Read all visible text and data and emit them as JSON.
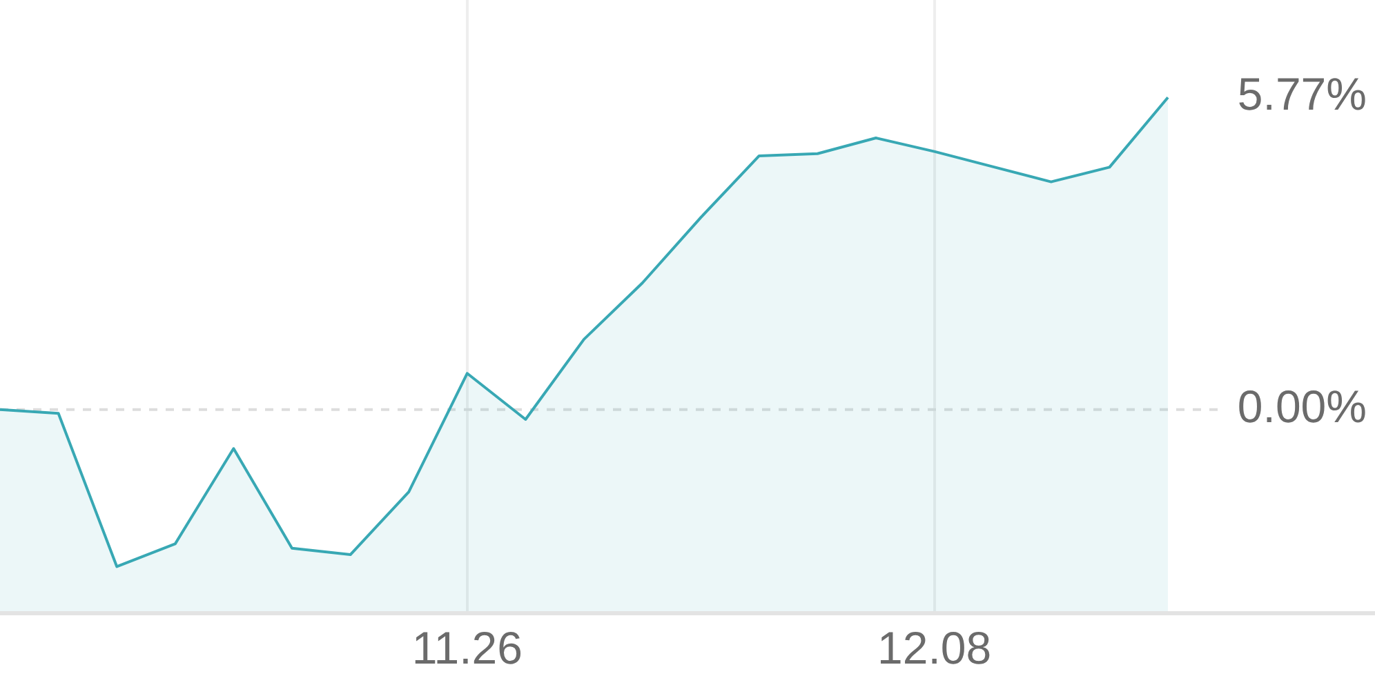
{
  "chart_data": {
    "type": "area",
    "categories": [
      null,
      null,
      null,
      null,
      null,
      null,
      null,
      null,
      "11.26",
      null,
      null,
      null,
      null,
      null,
      null,
      null,
      "12.08",
      null,
      null,
      null,
      null
    ],
    "values": [
      0.0,
      -0.07,
      -2.9,
      -2.48,
      -0.72,
      -2.56,
      -2.68,
      -1.52,
      0.67,
      -0.18,
      1.3,
      2.34,
      3.55,
      4.69,
      4.73,
      5.02,
      4.77,
      4.49,
      4.21,
      4.48,
      5.77
    ],
    "color": "#38a8b4",
    "ylim": [
      -3.75,
      7.57
    ],
    "yticks": [
      {
        "value": 0,
        "label": "0.00%"
      },
      {
        "value": 5.77,
        "label": "5.77%"
      }
    ],
    "grid": "x",
    "ref_lines": [
      {
        "axis": "y",
        "value": 0,
        "line_style": "dashed",
        "color": "#dddddd"
      }
    ],
    "legend": false,
    "marker": "none"
  }
}
